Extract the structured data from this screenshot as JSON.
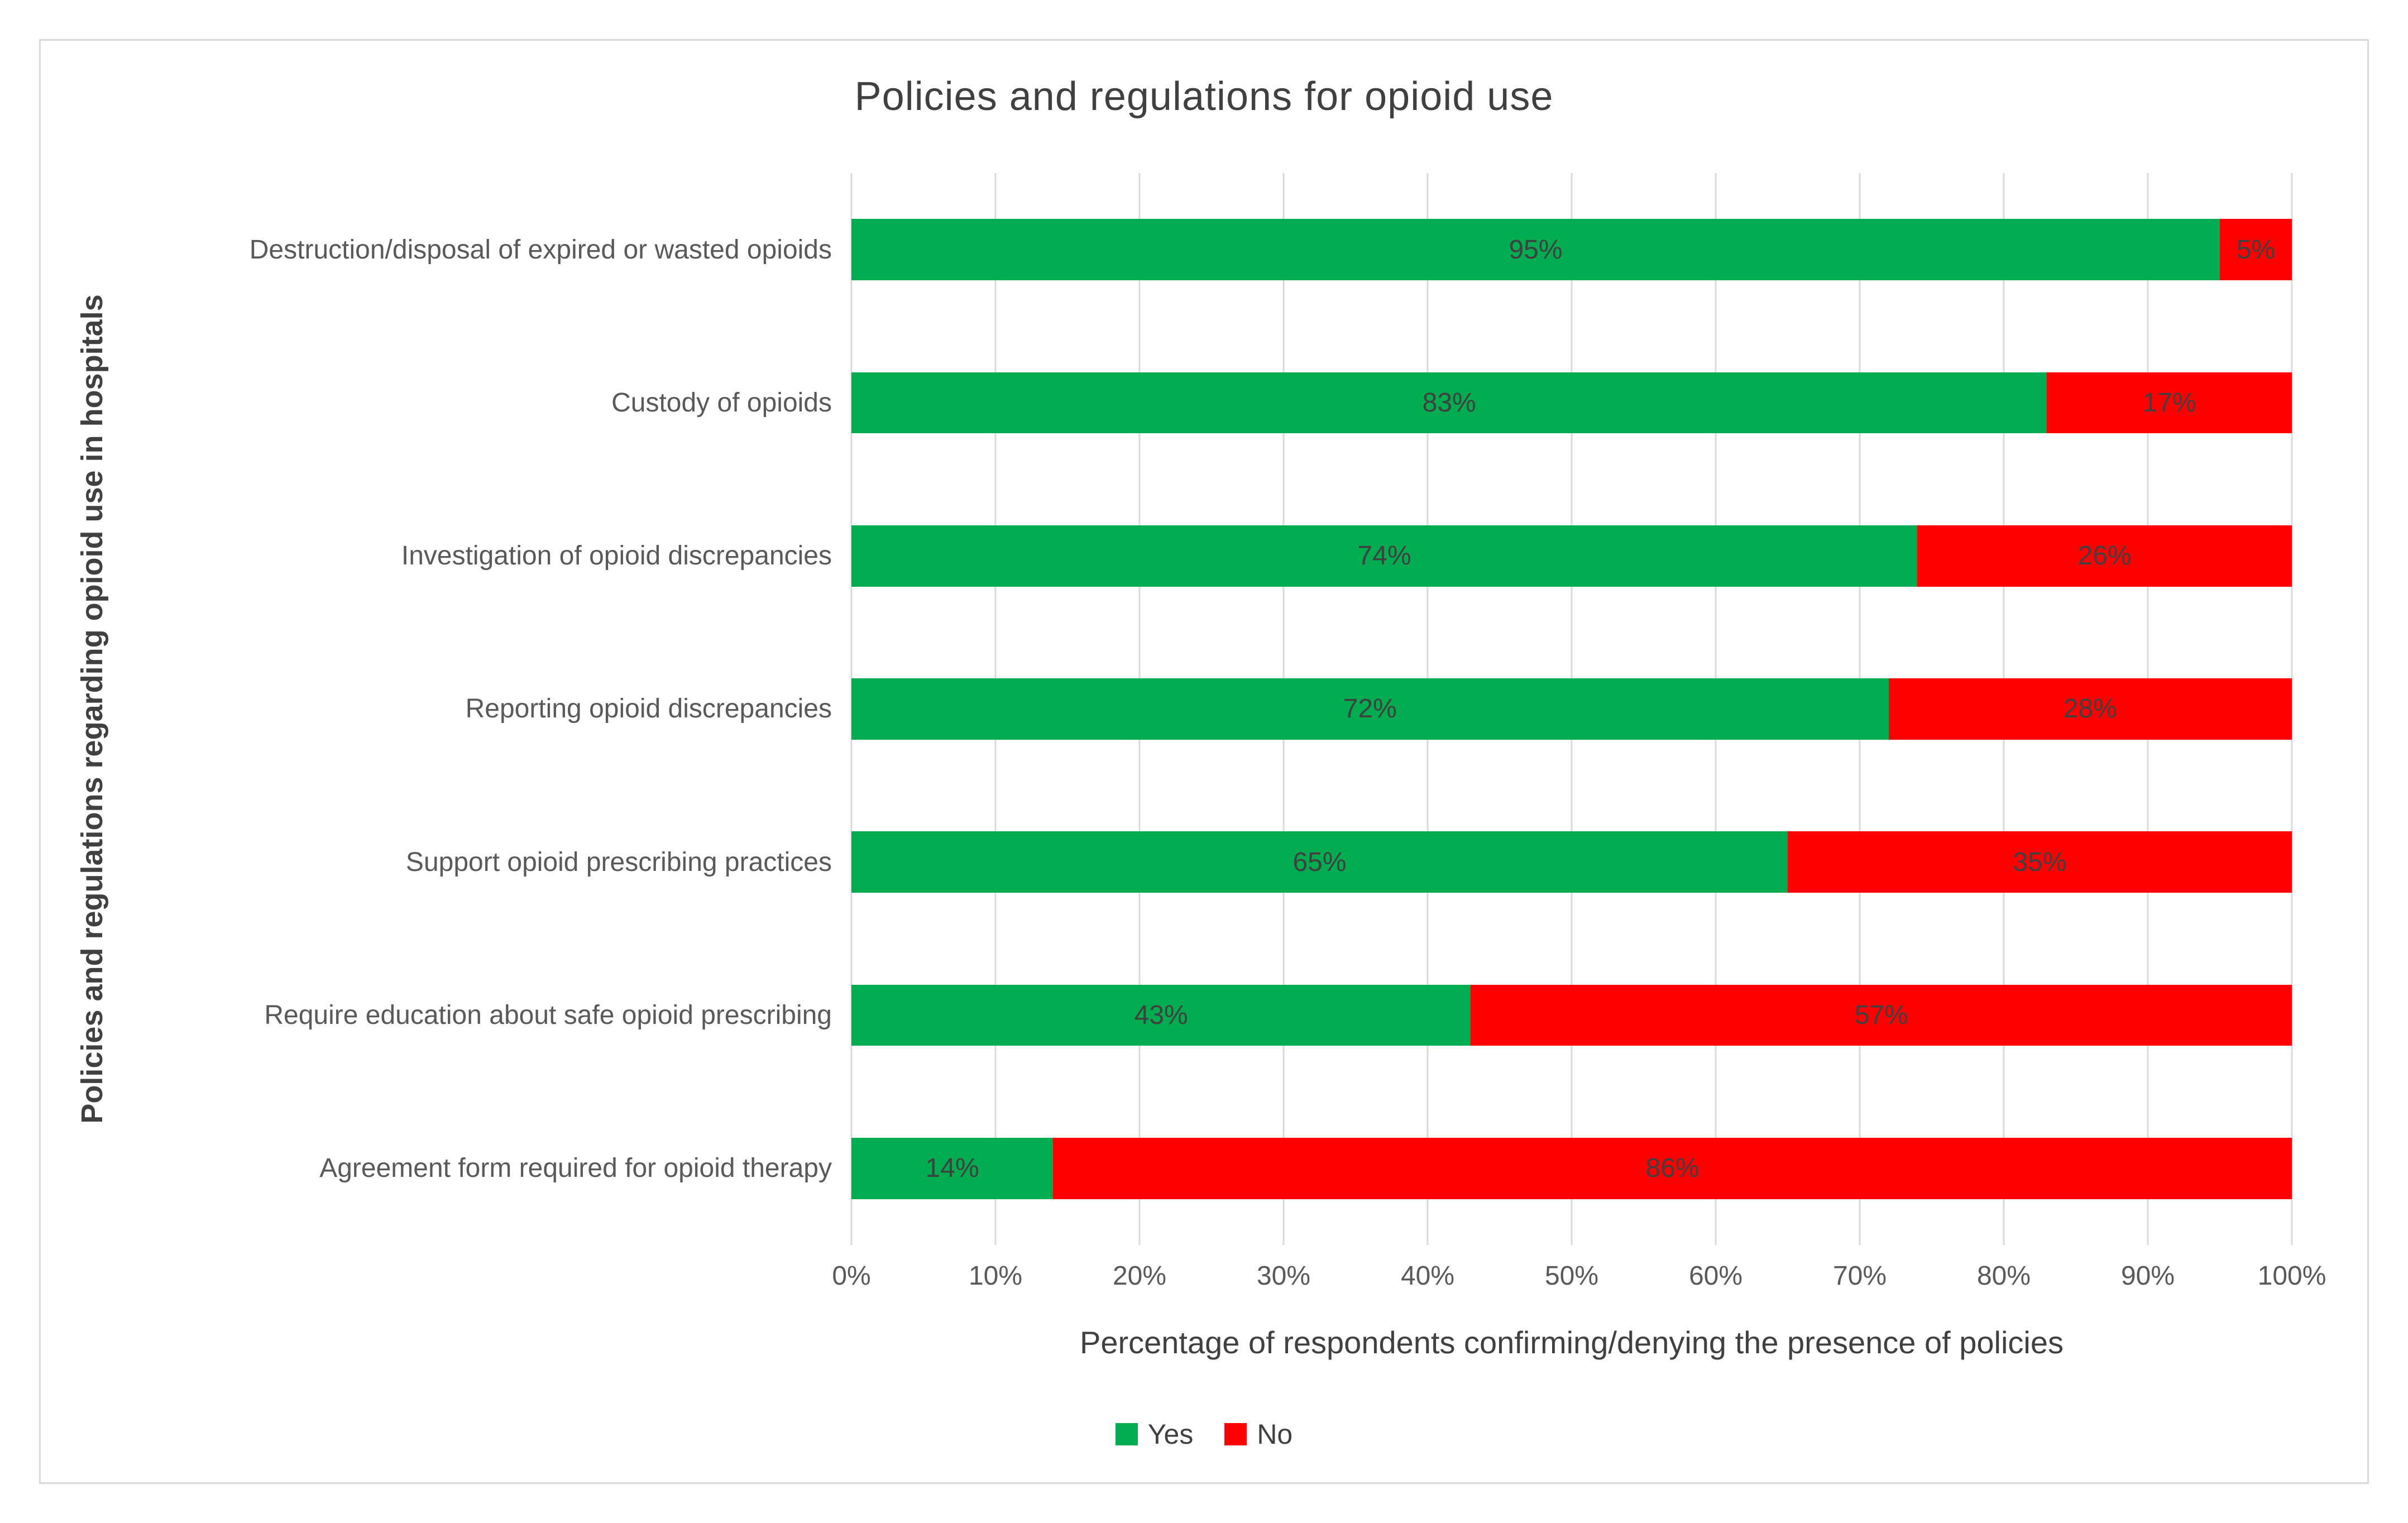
{
  "chart_data": {
    "type": "bar",
    "orientation": "horizontal-stacked",
    "title": "Policies and regulations for opioid use",
    "xlabel": "Percentage of respondents confirming/denying the presence of policies",
    "ylabel": "Policies and regulations regarding opioid use in hospitals",
    "categories": [
      "Destruction/disposal of expired or wasted opioids",
      "Custody of opioids",
      "Investigation of opioid discrepancies",
      "Reporting opioid discrepancies",
      "Support opioid prescribing practices",
      "Require education about safe opioid prescribing",
      "Agreement form required for opioid therapy"
    ],
    "series": [
      {
        "name": "Yes",
        "color": "#00AC50",
        "values": [
          95,
          83,
          74,
          72,
          65,
          43,
          14
        ]
      },
      {
        "name": "No",
        "color": "#FF0000",
        "values": [
          5,
          17,
          26,
          28,
          35,
          57,
          86
        ]
      }
    ],
    "xlim": [
      0,
      100
    ],
    "xticks": [
      "0%",
      "10%",
      "20%",
      "30%",
      "40%",
      "50%",
      "60%",
      "70%",
      "80%",
      "90%",
      "100%"
    ],
    "value_suffix": "%",
    "grid": true,
    "legend_position": "bottom",
    "colors": {
      "yes_green": "#00AC50",
      "no_red": "#FF0000",
      "gridline": "#d9d9d9",
      "frame_border": "#d9d9d9",
      "title_text": "#404040",
      "axis_text": "#595959",
      "data_label_text": "#404040"
    }
  }
}
